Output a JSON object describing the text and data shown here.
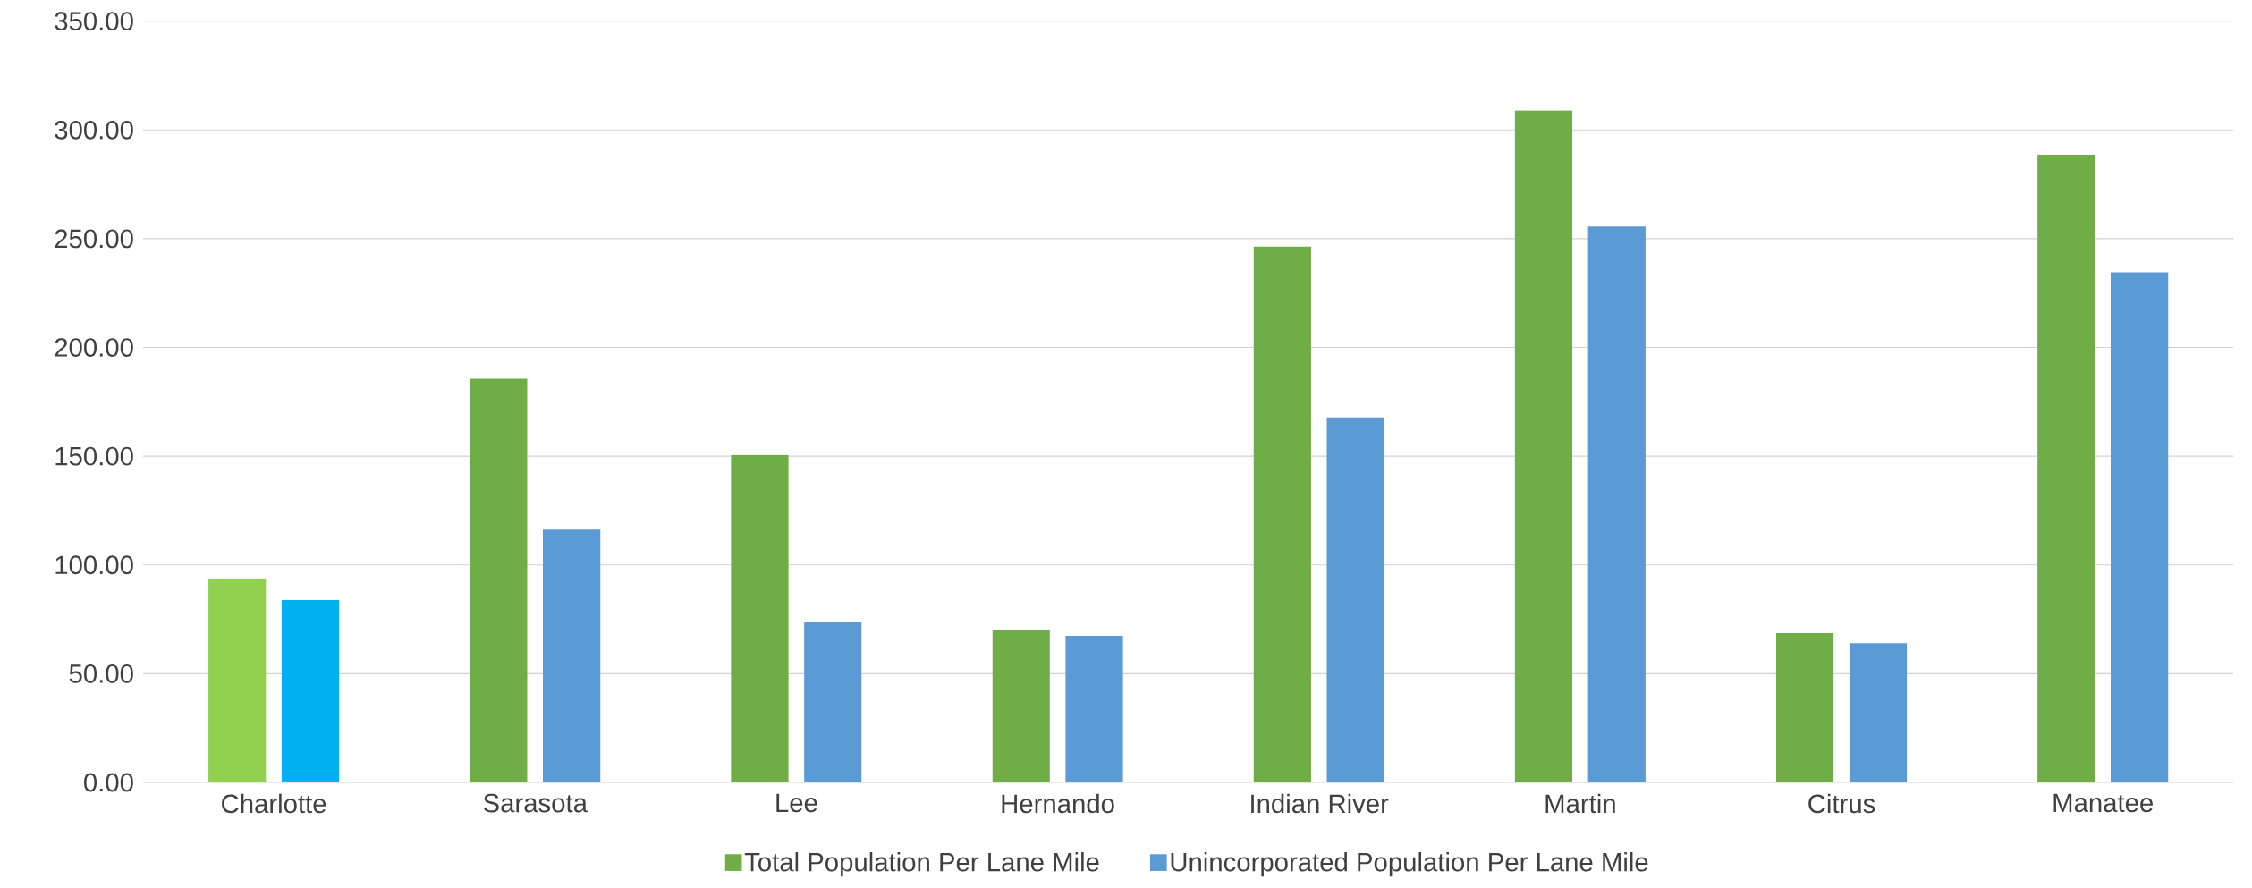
{
  "chart_data": {
    "type": "bar",
    "categories": [
      "Charlotte",
      "Sarasota",
      "Lee",
      "Hernando",
      "Indian River",
      "Martin",
      "Citrus",
      "Manatee"
    ],
    "series": [
      {
        "name": "Total Population Per Lane Mile",
        "color": "#70ad47",
        "colors": [
          "#92d050",
          "#70ad47",
          "#70ad47",
          "#70ad47",
          "#70ad47",
          "#70ad47",
          "#70ad47",
          "#70ad47"
        ],
        "values": [
          93.8,
          185.6,
          150.6,
          70.0,
          246.4,
          309.0,
          68.7,
          288.6
        ]
      },
      {
        "name": "Unincorporated Population Per Lane Mile",
        "color": "#5b9bd5",
        "colors": [
          "#00b0f0",
          "#5b9bd5",
          "#5b9bd5",
          "#5b9bd5",
          "#5b9bd5",
          "#5b9bd5",
          "#5b9bd5",
          "#5b9bd5"
        ],
        "values": [
          83.9,
          116.2,
          74.0,
          67.4,
          167.8,
          255.6,
          64.0,
          234.5
        ]
      }
    ],
    "ylim": [
      0,
      350
    ],
    "yticks": [
      {
        "value": 0,
        "label": "0.00"
      },
      {
        "value": 50,
        "label": "50.00"
      },
      {
        "value": 100,
        "label": "100.00"
      },
      {
        "value": 150,
        "label": "150.00"
      },
      {
        "value": 200,
        "label": "200.00"
      },
      {
        "value": 250,
        "label": "250.00"
      },
      {
        "value": 300,
        "label": "300.00"
      },
      {
        "value": 350,
        "label": "350.00"
      }
    ],
    "grid": "y",
    "legend": "bottom"
  }
}
